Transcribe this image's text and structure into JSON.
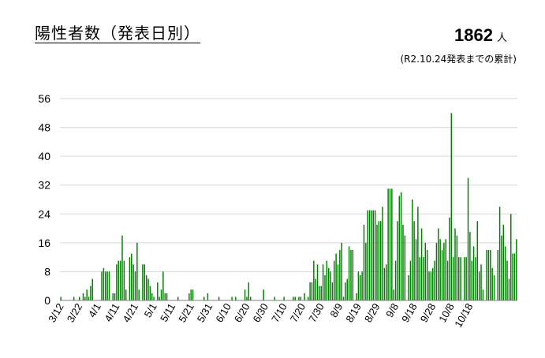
{
  "header": {
    "title": "陽性者数（発表日別）",
    "total_value": "1862",
    "total_unit": "人",
    "note": "(R2.10.24発表までの累計)"
  },
  "colors": {
    "bar": "#008000",
    "grid": "#d9d9d9",
    "axis": "#808080"
  },
  "chart_data": {
    "type": "bar",
    "title": "",
    "xlabel": "",
    "ylabel": "",
    "ylim": [
      0,
      56
    ],
    "yticks": [
      0,
      8,
      16,
      24,
      32,
      40,
      48,
      56
    ],
    "grid": true,
    "x_tick_labels": [
      "3/12",
      "3/22",
      "4/1",
      "4/11",
      "4/21",
      "5/1",
      "5/11",
      "5/21",
      "5/31",
      "6/10",
      "6/20",
      "6/30",
      "7/10",
      "7/20",
      "7/30",
      "8/9",
      "8/19",
      "8/29",
      "9/8",
      "9/18",
      "9/28",
      "10/8",
      "10/18"
    ],
    "start_date": "3/12",
    "end_date": "10/24",
    "series": [
      {
        "values": [
          1,
          0,
          0,
          0,
          0,
          0,
          0,
          1,
          0,
          0,
          1,
          0,
          2,
          1,
          3,
          1,
          4,
          6,
          0,
          0,
          0,
          0,
          8,
          9,
          8,
          8,
          8,
          0,
          2,
          2,
          10,
          11,
          11,
          18,
          11,
          3,
          0,
          12,
          13,
          10,
          8,
          16,
          3,
          0,
          10,
          10,
          7,
          6,
          4,
          2,
          1,
          0,
          5,
          1,
          3,
          8,
          2,
          2,
          0,
          0,
          0,
          0,
          0,
          1,
          0,
          0,
          0,
          0,
          0,
          2,
          3,
          3,
          0,
          0,
          0,
          0,
          0,
          1,
          0,
          2,
          0,
          0,
          0,
          0,
          0,
          1,
          0,
          0,
          0,
          0,
          0,
          0,
          1,
          0,
          1,
          0,
          0,
          0,
          0,
          3,
          1,
          5,
          1,
          0,
          0,
          0,
          0,
          0,
          0,
          3,
          0,
          0,
          0,
          0,
          0,
          1,
          0,
          0,
          0,
          0,
          1,
          0,
          0,
          0,
          0,
          1,
          1,
          0,
          1,
          1,
          0,
          2,
          0,
          1,
          5,
          5,
          11,
          6,
          10,
          4,
          4,
          10,
          7,
          11,
          9,
          8,
          5,
          11,
          13,
          10,
          14,
          16,
          1,
          5,
          6,
          15,
          14,
          14,
          0,
          2,
          8,
          7,
          8,
          21,
          16,
          25,
          25,
          25,
          25,
          25,
          21,
          22,
          22,
          26,
          9,
          10,
          31,
          31,
          31,
          3,
          11,
          22,
          29,
          30,
          21,
          18,
          0,
          7,
          11,
          28,
          22,
          17,
          26,
          12,
          20,
          12,
          16,
          14,
          8,
          8,
          9,
          11,
          16,
          20,
          17,
          14,
          16,
          17,
          11,
          23,
          52,
          12,
          20,
          18,
          12,
          12,
          0,
          12,
          12,
          34,
          19,
          11,
          15,
          12,
          22,
          8,
          10,
          3,
          0,
          14,
          14,
          14,
          9,
          7,
          0,
          14,
          26,
          18,
          21,
          15,
          11,
          6,
          24,
          13,
          13,
          17
        ]
      }
    ]
  }
}
